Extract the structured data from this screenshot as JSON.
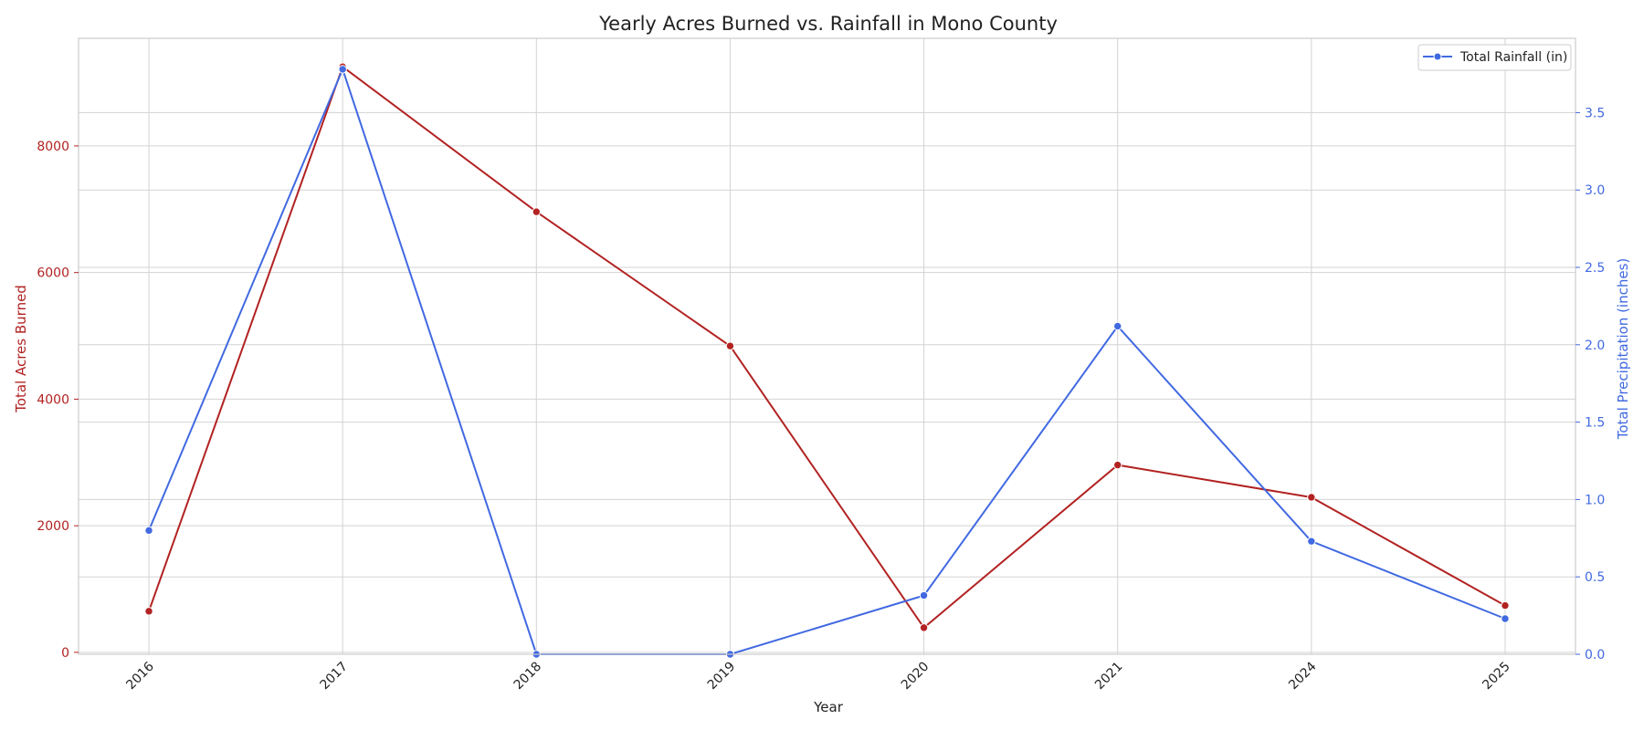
{
  "chart_data": {
    "type": "line",
    "title": "Yearly Acres Burned vs. Rainfall in Mono County",
    "xlabel": "Year",
    "categories": [
      "2016",
      "2017",
      "2018",
      "2019",
      "2020",
      "2021",
      "2024",
      "2025"
    ],
    "grid": true,
    "legend_position": "top-right",
    "y_left": {
      "label": "Total Acres Burned",
      "ylim": [
        -30,
        9700
      ],
      "ticks": [
        0,
        2000,
        4000,
        6000,
        8000
      ],
      "color": "#b22222"
    },
    "y_right": {
      "label": "Total Precipitation (inches)",
      "ylim": [
        0,
        3.98
      ],
      "ticks": [
        "0.0",
        "0.5",
        "1.0",
        "1.5",
        "2.0",
        "2.5",
        "3.0",
        "3.5"
      ],
      "color": "#4169e1"
    },
    "series": [
      {
        "axis": "left",
        "color": "#b22222",
        "values": [
          650,
          9250,
          6960,
          4840,
          390,
          2960,
          2450,
          740
        ]
      },
      {
        "name": "Total Rainfall (in)",
        "axis": "right",
        "color": "#4169e1",
        "values": [
          0.8,
          3.78,
          0.0,
          0.0,
          0.38,
          2.12,
          0.73,
          0.23
        ]
      }
    ]
  }
}
